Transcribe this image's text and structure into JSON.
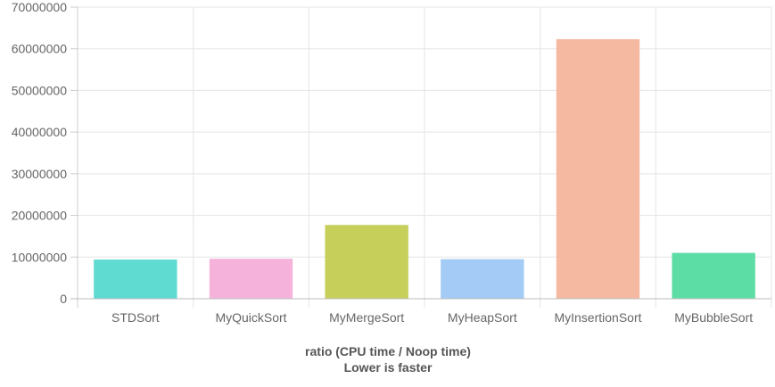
{
  "chart_data": {
    "type": "bar",
    "categories": [
      "STDSort",
      "MyQuickSort",
      "MyMergeSort",
      "MyHeapSort",
      "MyInsertionSort",
      "MyBubbleSort"
    ],
    "values": [
      9400000,
      9600000,
      17700000,
      9500000,
      62300000,
      11000000
    ],
    "colors": [
      "#5fdbd1",
      "#f5b3dc",
      "#c6cf5a",
      "#a3cbf5",
      "#f5b8a0",
      "#5cdda5"
    ],
    "y_ticks": [
      "0",
      "10000000",
      "20000000",
      "30000000",
      "40000000",
      "50000000",
      "60000000",
      "70000000"
    ],
    "ylim": [
      0,
      70000000
    ],
    "xlabel_line1": "ratio (CPU time / Noop time)",
    "xlabel_line2": "Lower is faster",
    "grid": true,
    "legend": "none"
  }
}
